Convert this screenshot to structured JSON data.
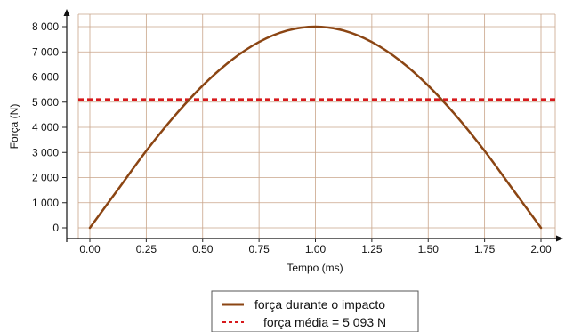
{
  "chart_data": {
    "type": "line",
    "xlabel": "Tempo (ms)",
    "ylabel": "Força (N)",
    "xlim": [
      0,
      2.0
    ],
    "ylim": [
      0,
      8000
    ],
    "x_ticks": [
      "0.00",
      "0.25",
      "0.50",
      "0.75",
      "1.00",
      "1.25",
      "1.50",
      "1.75",
      "2.00"
    ],
    "y_ticks": [
      "0",
      "1 000",
      "2 000",
      "3 000",
      "4 000",
      "5 000",
      "6 000",
      "7 000",
      "8 000"
    ],
    "grid": true,
    "series": [
      {
        "name": "força durante o impacto",
        "style": "solid",
        "color": "#8B4513",
        "x": [
          0.0,
          0.125,
          0.25,
          0.375,
          0.5,
          0.625,
          0.75,
          0.875,
          1.0,
          1.125,
          1.25,
          1.375,
          1.5,
          1.625,
          1.75,
          1.875,
          2.0
        ],
        "y": [
          0,
          1531,
          3061,
          4444,
          5657,
          6652,
          7391,
          7846,
          8000,
          7846,
          7391,
          6652,
          5657,
          4444,
          3061,
          1531,
          0
        ]
      },
      {
        "name": "força média = 5 093 N",
        "style": "dashed",
        "color": "#d7191c",
        "y_constant": 5093
      }
    ],
    "legend_position": "bottom-center"
  }
}
